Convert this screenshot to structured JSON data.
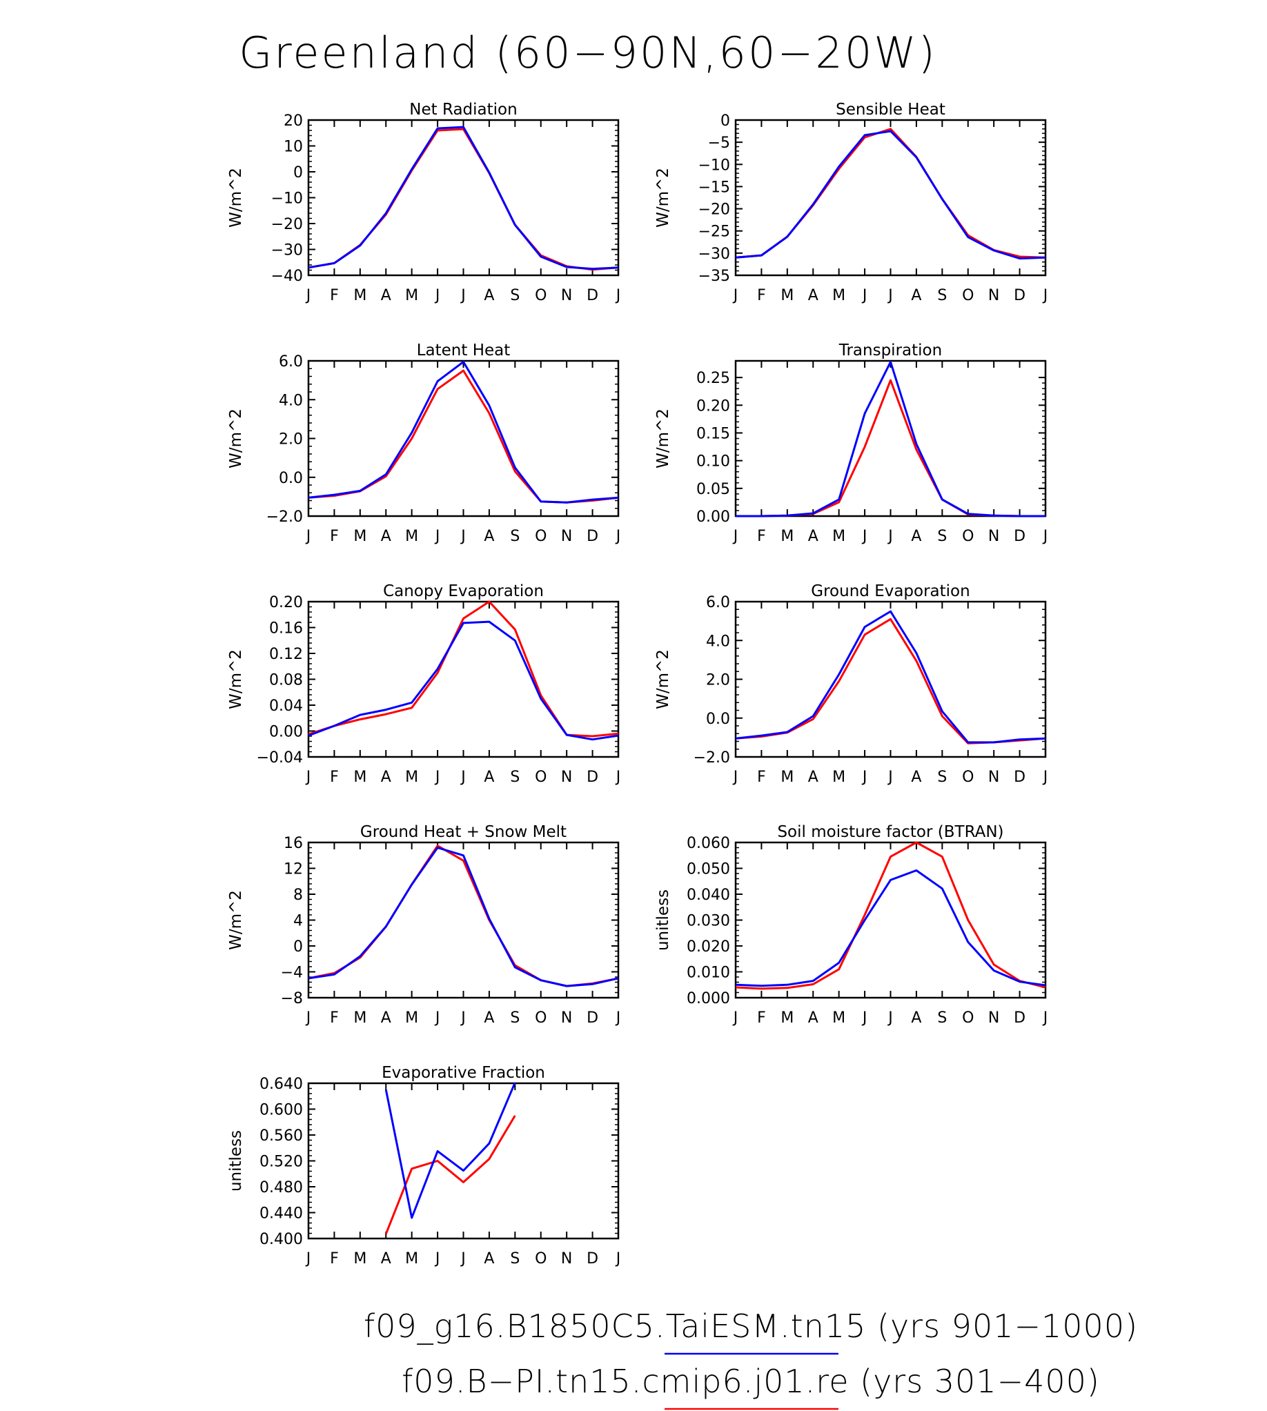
{
  "figure": {
    "title": "Greenland (60−90N,60−20W)",
    "colors": {
      "case1": "#0000ff",
      "case2": "#ff0000",
      "axis": "#000000"
    }
  },
  "legend": [
    {
      "label": "f09_g16.B1850C5.TaiESM.tn15 (yrs 901−1000)",
      "color": "#0000ff"
    },
    {
      "label": "f09.B−PI.tn15.cmip6.j01.re (yrs 301−400)",
      "color": "#ff0000"
    }
  ],
  "chart_data": [
    {
      "type": "line",
      "title": "Net Radiation",
      "ylabel": "W/m^2",
      "categories": [
        "J",
        "F",
        "M",
        "A",
        "M",
        "J",
        "J",
        "A",
        "S",
        "O",
        "N",
        "D",
        "J"
      ],
      "ylim": [
        -40,
        20
      ],
      "yticks": [
        -40,
        -30,
        -20,
        -10,
        0,
        10,
        20
      ],
      "yticklabels": [
        "−40",
        "−30",
        "−20",
        "−10",
        "0",
        "10",
        "20"
      ],
      "series": [
        {
          "color": "#ff0000",
          "values": [
            -37,
            -35.3,
            -28.3,
            -16.5,
            0.5,
            16.0,
            16.5,
            -0.5,
            -20.5,
            -32.3,
            -36.5,
            -37.8,
            -37
          ]
        },
        {
          "color": "#0000ff",
          "values": [
            -37,
            -35.3,
            -28.5,
            -16.0,
            1.0,
            16.8,
            17.3,
            -0.3,
            -20.5,
            -32.8,
            -36.8,
            -37.5,
            -37
          ]
        }
      ]
    },
    {
      "type": "line",
      "title": "Sensible Heat",
      "ylabel": "W/m^2",
      "categories": [
        "J",
        "F",
        "M",
        "A",
        "M",
        "J",
        "J",
        "A",
        "S",
        "O",
        "N",
        "D",
        "J"
      ],
      "ylim": [
        -35,
        0
      ],
      "yticks": [
        -35,
        -30,
        -25,
        -20,
        -15,
        -10,
        -5,
        0
      ],
      "yticklabels": [
        "−35",
        "−30",
        "−25",
        "−20",
        "−15",
        "−10",
        "−5",
        "0"
      ],
      "series": [
        {
          "color": "#ff0000",
          "values": [
            -31.0,
            -30.5,
            -26.3,
            -19.2,
            -11.0,
            -3.9,
            -2.0,
            -8.3,
            -17.8,
            -26.0,
            -29.3,
            -30.8,
            -31.0
          ]
        },
        {
          "color": "#0000ff",
          "values": [
            -31.0,
            -30.5,
            -26.3,
            -19.0,
            -10.5,
            -3.4,
            -2.5,
            -8.4,
            -17.8,
            -26.4,
            -29.4,
            -31.2,
            -31.0
          ]
        }
      ]
    },
    {
      "type": "line",
      "title": "Latent Heat",
      "ylabel": "W/m^2",
      "categories": [
        "J",
        "F",
        "M",
        "A",
        "M",
        "J",
        "J",
        "A",
        "S",
        "O",
        "N",
        "D",
        "J"
      ],
      "ylim": [
        -2.0,
        6.0
      ],
      "yticks": [
        -2.0,
        0.0,
        2.0,
        4.0,
        6.0
      ],
      "yticklabels": [
        "−2.0",
        "0.0",
        "2.0",
        "4.0",
        "6.0"
      ],
      "series": [
        {
          "color": "#ff0000",
          "values": [
            -1.05,
            -0.95,
            -0.72,
            0.05,
            2.0,
            4.55,
            5.5,
            3.3,
            0.3,
            -1.25,
            -1.3,
            -1.2,
            -1.05
          ]
        },
        {
          "color": "#0000ff",
          "values": [
            -1.05,
            -0.9,
            -0.7,
            0.15,
            2.3,
            4.95,
            5.95,
            3.7,
            0.5,
            -1.25,
            -1.3,
            -1.15,
            -1.05
          ]
        }
      ]
    },
    {
      "type": "line",
      "title": "Transpiration",
      "ylabel": "W/m^2",
      "categories": [
        "J",
        "F",
        "M",
        "A",
        "M",
        "J",
        "J",
        "A",
        "S",
        "O",
        "N",
        "D",
        "J"
      ],
      "ylim": [
        0.0,
        0.28
      ],
      "yticks": [
        0.0,
        0.05,
        0.1,
        0.15,
        0.2,
        0.25
      ],
      "yticklabels": [
        "0.00",
        "0.05",
        "0.10",
        "0.15",
        "0.20",
        "0.25"
      ],
      "series": [
        {
          "color": "#ff0000",
          "values": [
            0.0,
            0.0,
            0.001,
            0.004,
            0.025,
            0.125,
            0.245,
            0.12,
            0.03,
            0.003,
            0.001,
            0.0,
            0.0
          ]
        },
        {
          "color": "#0000ff",
          "values": [
            0.0,
            0.0,
            0.001,
            0.005,
            0.03,
            0.185,
            0.278,
            0.13,
            0.03,
            0.004,
            0.001,
            0.0,
            0.0
          ]
        }
      ]
    },
    {
      "type": "line",
      "title": "Canopy Evaporation",
      "ylabel": "W/m^2",
      "categories": [
        "J",
        "F",
        "M",
        "A",
        "M",
        "J",
        "J",
        "A",
        "S",
        "O",
        "N",
        "D",
        "J"
      ],
      "ylim": [
        -0.04,
        0.2
      ],
      "yticks": [
        -0.04,
        0.0,
        0.04,
        0.08,
        0.12,
        0.16,
        0.2
      ],
      "yticklabels": [
        "−0.04",
        "0.00",
        "0.04",
        "0.08",
        "0.12",
        "0.16",
        "0.20"
      ],
      "series": [
        {
          "color": "#ff0000",
          "values": [
            -0.005,
            0.008,
            0.018,
            0.026,
            0.036,
            0.09,
            0.174,
            0.2,
            0.157,
            0.055,
            -0.006,
            -0.008,
            -0.004
          ]
        },
        {
          "color": "#0000ff",
          "values": [
            -0.007,
            0.008,
            0.025,
            0.033,
            0.044,
            0.096,
            0.167,
            0.169,
            0.14,
            0.05,
            -0.006,
            -0.013,
            -0.007
          ]
        }
      ]
    },
    {
      "type": "line",
      "title": "Ground Evaporation",
      "ylabel": "W/m^2",
      "categories": [
        "J",
        "F",
        "M",
        "A",
        "M",
        "J",
        "J",
        "A",
        "S",
        "O",
        "N",
        "D",
        "J"
      ],
      "ylim": [
        -2.0,
        6.0
      ],
      "yticks": [
        -2.0,
        0.0,
        2.0,
        4.0,
        6.0
      ],
      "yticklabels": [
        "−2.0",
        "0.0",
        "2.0",
        "4.0",
        "6.0"
      ],
      "series": [
        {
          "color": "#ff0000",
          "values": [
            -1.05,
            -0.95,
            -0.75,
            -0.05,
            1.9,
            4.3,
            5.1,
            2.95,
            0.1,
            -1.3,
            -1.25,
            -1.15,
            -1.05
          ]
        },
        {
          "color": "#0000ff",
          "values": [
            -1.05,
            -0.9,
            -0.72,
            0.1,
            2.25,
            4.7,
            5.5,
            3.35,
            0.35,
            -1.25,
            -1.25,
            -1.1,
            -1.05
          ]
        }
      ]
    },
    {
      "type": "line",
      "title": "Ground Heat + Snow Melt",
      "ylabel": "W/m^2",
      "categories": [
        "J",
        "F",
        "M",
        "A",
        "M",
        "J",
        "J",
        "A",
        "S",
        "O",
        "N",
        "D",
        "J"
      ],
      "ylim": [
        -8,
        16
      ],
      "yticks": [
        -8,
        -4,
        0,
        4,
        8,
        12,
        16
      ],
      "yticklabels": [
        "−8",
        "−4",
        "0",
        "4",
        "8",
        "12",
        "16"
      ],
      "series": [
        {
          "color": "#ff0000",
          "values": [
            -5.0,
            -4.2,
            -1.8,
            3.0,
            9.5,
            15.5,
            13.2,
            4.0,
            -3.0,
            -5.3,
            -6.2,
            -5.8,
            -5.0
          ]
        },
        {
          "color": "#0000ff",
          "values": [
            -5.0,
            -4.4,
            -1.6,
            3.0,
            9.5,
            15.2,
            14.0,
            4.2,
            -3.3,
            -5.3,
            -6.2,
            -5.9,
            -5.0
          ]
        }
      ]
    },
    {
      "type": "line",
      "title": "Soil moisture factor (BTRAN)",
      "ylabel": "unitless",
      "categories": [
        "J",
        "F",
        "M",
        "A",
        "M",
        "J",
        "J",
        "A",
        "S",
        "O",
        "N",
        "D",
        "J"
      ],
      "ylim": [
        0.0,
        0.06
      ],
      "yticks": [
        0.0,
        0.01,
        0.02,
        0.03,
        0.04,
        0.05,
        0.06
      ],
      "yticklabels": [
        "0.000",
        "0.010",
        "0.020",
        "0.030",
        "0.040",
        "0.050",
        "0.060"
      ],
      "series": [
        {
          "color": "#ff0000",
          "values": [
            0.004,
            0.0035,
            0.0038,
            0.0052,
            0.011,
            0.032,
            0.0545,
            0.06,
            0.0545,
            0.03,
            0.0128,
            0.0065,
            0.004
          ]
        },
        {
          "color": "#0000ff",
          "values": [
            0.005,
            0.0046,
            0.005,
            0.0065,
            0.0135,
            0.03,
            0.0455,
            0.0492,
            0.0422,
            0.0215,
            0.0105,
            0.0062,
            0.0048
          ]
        }
      ]
    },
    {
      "type": "line",
      "title": "Evaporative Fraction",
      "ylabel": "unitless",
      "categories": [
        "J",
        "F",
        "M",
        "A",
        "M",
        "J",
        "J",
        "A",
        "S",
        "O",
        "N",
        "D",
        "J"
      ],
      "ylim": [
        0.4,
        0.64
      ],
      "yticks": [
        0.4,
        0.44,
        0.48,
        0.52,
        0.56,
        0.6,
        0.64
      ],
      "yticklabels": [
        "0.400",
        "0.440",
        "0.480",
        "0.520",
        "0.560",
        "0.600",
        "0.640"
      ],
      "series": [
        {
          "color": "#ff0000",
          "values": [
            null,
            null,
            null,
            0.407,
            0.508,
            0.52,
            0.487,
            0.523,
            0.59,
            null,
            null,
            null,
            null
          ]
        },
        {
          "color": "#0000ff",
          "values": [
            null,
            null,
            null,
            0.63,
            0.432,
            0.535,
            0.505,
            0.547,
            0.641,
            null,
            null,
            null,
            null
          ]
        }
      ]
    }
  ]
}
